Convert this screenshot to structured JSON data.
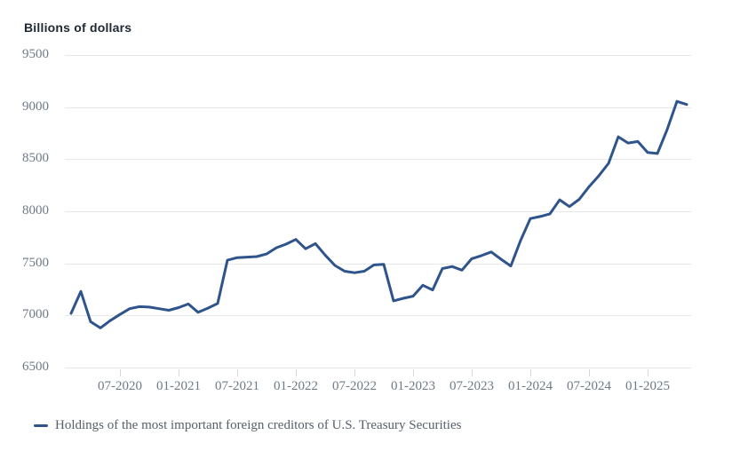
{
  "chart": {
    "title": "Billions of dollars",
    "legend_label": "Holdings of the most important foreign creditors of U.S. Treasury Securities",
    "colors": {
      "line": "#2f548c",
      "grid": "#e8e8e8",
      "tick": "#d9d9d9",
      "axis_text": "#6e7a86",
      "title_text": "#1e2933",
      "legend_text": "#57606a",
      "background": "#ffffff"
    }
  },
  "chart_data": {
    "type": "line",
    "title": "Billions of dollars",
    "xlabel": "",
    "ylabel": "Billions of dollars",
    "ylim": [
      6500,
      9500
    ],
    "yticks": [
      9500,
      9000,
      8500,
      8000,
      7500,
      7000,
      6500
    ],
    "xticklabels": [
      "07-2020",
      "01-2021",
      "07-2021",
      "01-2022",
      "07-2022",
      "01-2023",
      "07-2023",
      "01-2024",
      "07-2024",
      "01-2025"
    ],
    "grid": "horizontal",
    "legend_position": "bottom-left",
    "x": [
      "02-2020",
      "03-2020",
      "04-2020",
      "05-2020",
      "06-2020",
      "07-2020",
      "08-2020",
      "09-2020",
      "10-2020",
      "11-2020",
      "12-2020",
      "01-2021",
      "02-2021",
      "03-2021",
      "04-2021",
      "05-2021",
      "06-2021",
      "07-2021",
      "08-2021",
      "09-2021",
      "10-2021",
      "11-2021",
      "12-2021",
      "01-2022",
      "02-2022",
      "03-2022",
      "04-2022",
      "05-2022",
      "06-2022",
      "07-2022",
      "08-2022",
      "09-2022",
      "10-2022",
      "11-2022",
      "12-2022",
      "01-2023",
      "02-2023",
      "03-2023",
      "04-2023",
      "05-2023",
      "06-2023",
      "07-2023",
      "08-2023",
      "09-2023",
      "10-2023",
      "11-2023",
      "12-2023",
      "01-2024",
      "02-2024",
      "03-2024",
      "04-2024",
      "05-2024",
      "06-2024",
      "07-2024",
      "08-2024",
      "09-2024",
      "10-2024",
      "11-2024",
      "12-2024",
      "01-2025",
      "02-2025",
      "03-2025",
      "04-2025",
      "05-2025"
    ],
    "series": [
      {
        "name": "Holdings of the most important foreign creditors of U.S. Treasury Securities",
        "values": [
          7020,
          7230,
          6940,
          6880,
          6950,
          7010,
          7065,
          7085,
          7080,
          7065,
          7050,
          7075,
          7110,
          7030,
          7070,
          7115,
          7530,
          7555,
          7560,
          7565,
          7590,
          7650,
          7685,
          7730,
          7640,
          7690,
          7580,
          7480,
          7425,
          7410,
          7425,
          7485,
          7490,
          7140,
          7165,
          7185,
          7290,
          7245,
          7450,
          7470,
          7435,
          7545,
          7575,
          7610,
          7540,
          7475,
          7720,
          7930,
          7950,
          7975,
          8110,
          8045,
          8115,
          8235,
          8340,
          8460,
          8715,
          8655,
          8670,
          8565,
          8555,
          8785,
          9055,
          9025
        ]
      }
    ]
  }
}
